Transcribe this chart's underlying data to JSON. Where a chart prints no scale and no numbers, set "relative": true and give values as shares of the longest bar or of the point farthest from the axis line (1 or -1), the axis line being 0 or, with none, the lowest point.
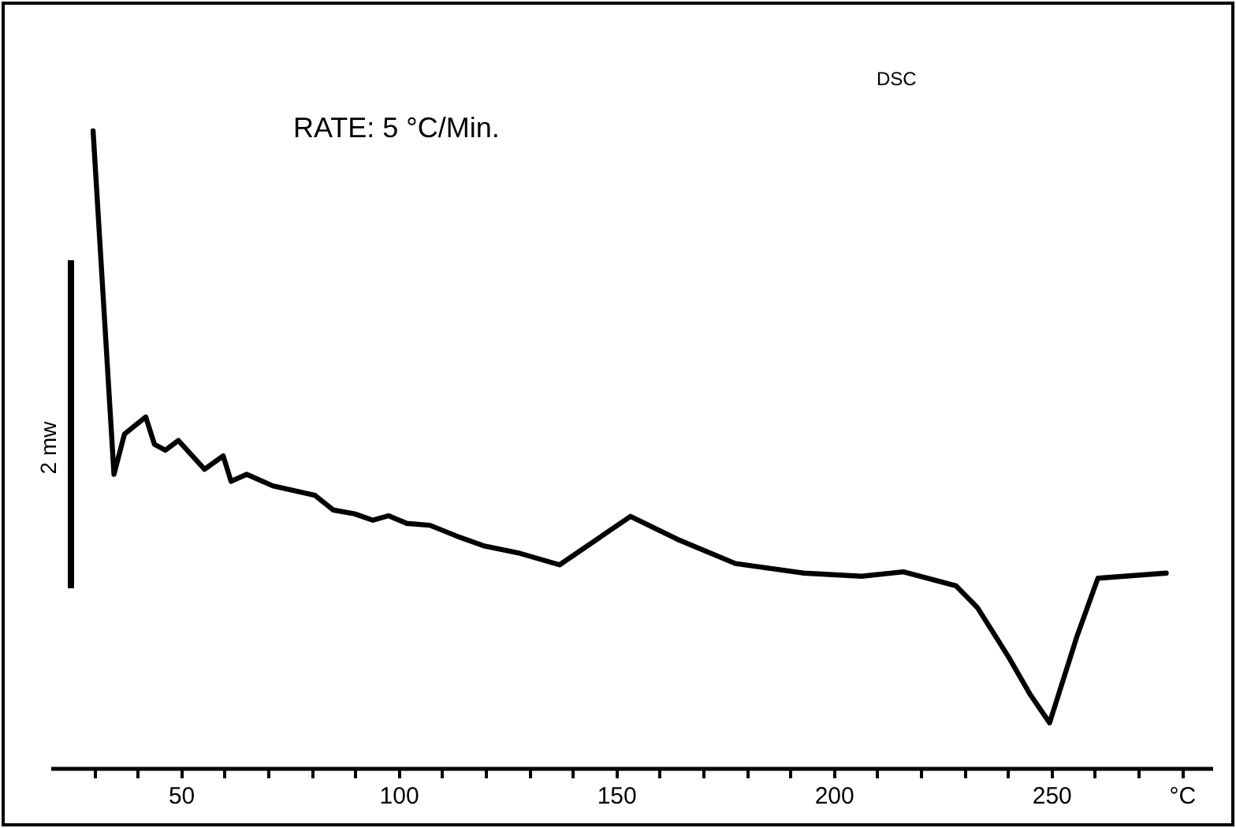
{
  "chart_data": {
    "type": "line",
    "relative": true,
    "ylabel": "2 mw",
    "annotations": [
      "RATE: 5 °C/Min.",
      "DSC"
    ],
    "xlim": [
      20,
      287
    ],
    "xticks": [
      {
        "value": 30,
        "label": null
      },
      {
        "value": 40,
        "label": null
      },
      50,
      {
        "value": 60,
        "label": null
      },
      {
        "value": 70,
        "label": null
      },
      {
        "value": 80,
        "label": null
      },
      {
        "value": 90,
        "label": null
      },
      100,
      {
        "value": 110,
        "label": null
      },
      {
        "value": 120,
        "label": null
      },
      {
        "value": 130,
        "label": null
      },
      {
        "value": 140,
        "label": null
      },
      150,
      {
        "value": 160,
        "label": null
      },
      {
        "value": 170,
        "label": null
      },
      {
        "value": 180,
        "label": null
      },
      {
        "value": 190,
        "label": null
      },
      200,
      {
        "value": 210,
        "label": null
      },
      {
        "value": 220,
        "label": null
      },
      {
        "value": 230,
        "label": null
      },
      {
        "value": 240,
        "label": null
      },
      250,
      {
        "value": 260,
        "label": null
      },
      {
        "value": 270,
        "label": null
      },
      {
        "value": 280,
        "label": "°C"
      }
    ],
    "series": [
      {
        "color": "#000000",
        "x": [
          29.8,
          34.6,
          37.0,
          41.9,
          43.9,
          46.4,
          49.4,
          55.4,
          59.7,
          61.5,
          65.1,
          71.1,
          80.8,
          85.0,
          89.9,
          94.1,
          97.7,
          101.9,
          107.2,
          113.4,
          119.5,
          127.9,
          137.0,
          153.3,
          164.1,
          177.4,
          193.1,
          206.4,
          216.0,
          228.1,
          233.0,
          240.2,
          245.0,
          249.6,
          255.9,
          260.7,
          276.4
        ],
        "values": [
          1,
          0.461,
          0.524,
          0.551,
          0.508,
          0.499,
          0.514,
          0.469,
          0.49,
          0.45,
          0.461,
          0.443,
          0.428,
          0.405,
          0.399,
          0.389,
          0.396,
          0.384,
          0.381,
          0.364,
          0.349,
          0.337,
          0.319,
          0.395,
          0.359,
          0.321,
          0.306,
          0.301,
          0.308,
          0.286,
          0.252,
          0.174,
          0.117,
          0.071,
          0.207,
          0.298,
          0.306
        ]
      }
    ]
  }
}
